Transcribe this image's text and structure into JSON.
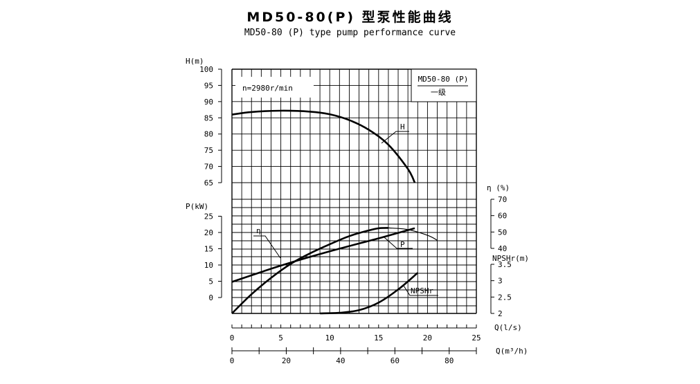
{
  "title": "MD50-80(P) 型泵性能曲线",
  "subtitle": "MD50-80 (P) type pump performance curve",
  "chart_data": {
    "type": "line",
    "model_label": "MD50-80 (P)",
    "stage_label": "一级",
    "speed_label": "n=2980r/min",
    "axes": {
      "H": {
        "label": "H(m)",
        "ticks": [
          "65",
          "70",
          "75",
          "80",
          "85",
          "90",
          "95",
          "100"
        ],
        "range": [
          65,
          100
        ]
      },
      "P": {
        "label": "P(kW)",
        "ticks": [
          "0",
          "5",
          "10",
          "15",
          "20",
          "25"
        ],
        "range": [
          0,
          25
        ]
      },
      "eta": {
        "label": "η (%)",
        "ticks": [
          "40",
          "50",
          "60",
          "70"
        ],
        "range": [
          40,
          70
        ]
      },
      "NPSH": {
        "label": "NPSHr(m)",
        "ticks": [
          "2",
          "2.5",
          "3",
          "3.5"
        ],
        "range": [
          2,
          3.5
        ]
      },
      "Q_ls": {
        "label": "Q(l/s)",
        "ticks": [
          "0",
          "5",
          "10",
          "15",
          "20",
          "25"
        ],
        "range": [
          0,
          25
        ]
      },
      "Q_m3h": {
        "label": "Q(m³/h)",
        "ticks": [
          "0",
          "20",
          "40",
          "60",
          "80"
        ],
        "range": [
          0,
          90
        ]
      }
    },
    "grid": true,
    "series": [
      {
        "name": "H",
        "axis": "H",
        "x": [
          0,
          2,
          5,
          8,
          10,
          12,
          14,
          16,
          18,
          18.7
        ],
        "y": [
          86,
          86.8,
          87.2,
          86.9,
          86.1,
          84.3,
          81.3,
          76.7,
          69.2,
          65
        ]
      },
      {
        "name": "η",
        "axis": "eta",
        "x": [
          0,
          2,
          4,
          6,
          8,
          10,
          12,
          14,
          15,
          16,
          18,
          20,
          21
        ],
        "y": [
          0,
          12,
          22,
          30.5,
          37,
          42.5,
          47.5,
          51,
          52.3,
          52.5,
          51.5,
          48,
          45
        ]
      },
      {
        "name": "P",
        "axis": "P",
        "x": [
          0,
          5,
          10,
          15,
          18.7
        ],
        "y": [
          4.8,
          9.8,
          14.2,
          18.2,
          21.3
        ]
      },
      {
        "name": "NPSHr",
        "axis": "NPSH",
        "x": [
          9,
          11,
          13,
          15,
          17,
          19
        ],
        "y": [
          2.0,
          2.02,
          2.1,
          2.33,
          2.73,
          3.24
        ]
      }
    ]
  }
}
